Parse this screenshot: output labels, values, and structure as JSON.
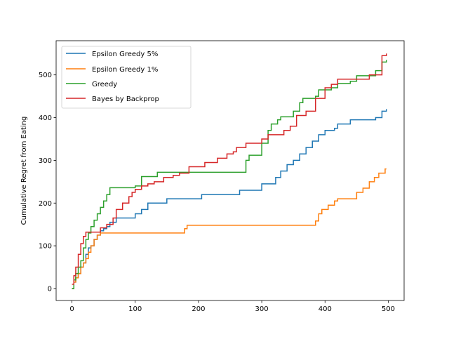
{
  "chart_data": {
    "type": "line",
    "title": "",
    "xlabel": "",
    "ylabel": "Cumulative Regret from Eating",
    "xlim": [
      -25,
      525
    ],
    "ylim": [
      -28,
      580
    ],
    "xticks": [
      0,
      100,
      200,
      300,
      400,
      500
    ],
    "yticks": [
      0,
      100,
      200,
      300,
      400,
      500
    ],
    "grid": false,
    "legend_position": "top-left",
    "series": [
      {
        "name": "Epsilon Greedy 5%",
        "color": "#1f77b4",
        "points": [
          [
            0,
            0
          ],
          [
            3,
            15
          ],
          [
            6,
            25
          ],
          [
            10,
            35
          ],
          [
            14,
            50
          ],
          [
            18,
            60
          ],
          [
            22,
            80
          ],
          [
            26,
            95
          ],
          [
            30,
            100
          ],
          [
            35,
            115
          ],
          [
            40,
            125
          ],
          [
            45,
            135
          ],
          [
            50,
            140
          ],
          [
            55,
            145
          ],
          [
            60,
            155
          ],
          [
            70,
            165
          ],
          [
            100,
            175
          ],
          [
            110,
            185
          ],
          [
            120,
            200
          ],
          [
            150,
            210
          ],
          [
            205,
            220
          ],
          [
            265,
            230
          ],
          [
            300,
            245
          ],
          [
            322,
            260
          ],
          [
            330,
            275
          ],
          [
            340,
            290
          ],
          [
            350,
            300
          ],
          [
            360,
            315
          ],
          [
            370,
            330
          ],
          [
            380,
            345
          ],
          [
            390,
            360
          ],
          [
            400,
            370
          ],
          [
            415,
            375
          ],
          [
            420,
            385
          ],
          [
            440,
            395
          ],
          [
            480,
            400
          ],
          [
            490,
            415
          ],
          [
            497,
            420
          ]
        ]
      },
      {
        "name": "Epsilon Greedy 1%",
        "color": "#ff7f0e",
        "points": [
          [
            0,
            0
          ],
          [
            3,
            15
          ],
          [
            6,
            25
          ],
          [
            10,
            35
          ],
          [
            14,
            50
          ],
          [
            18,
            60
          ],
          [
            22,
            70
          ],
          [
            26,
            85
          ],
          [
            30,
            100
          ],
          [
            35,
            115
          ],
          [
            40,
            125
          ],
          [
            45,
            130
          ],
          [
            175,
            130
          ],
          [
            178,
            140
          ],
          [
            182,
            148
          ],
          [
            370,
            148
          ],
          [
            385,
            158
          ],
          [
            390,
            175
          ],
          [
            395,
            185
          ],
          [
            405,
            195
          ],
          [
            415,
            205
          ],
          [
            420,
            210
          ],
          [
            450,
            225
          ],
          [
            460,
            235
          ],
          [
            470,
            250
          ],
          [
            478,
            260
          ],
          [
            485,
            270
          ],
          [
            495,
            280
          ],
          [
            497,
            280
          ]
        ]
      },
      {
        "name": "Greedy",
        "color": "#2ca02c",
        "points": [
          [
            0,
            0
          ],
          [
            3,
            20
          ],
          [
            6,
            35
          ],
          [
            10,
            50
          ],
          [
            14,
            65
          ],
          [
            18,
            95
          ],
          [
            22,
            115
          ],
          [
            26,
            130
          ],
          [
            30,
            145
          ],
          [
            35,
            160
          ],
          [
            40,
            175
          ],
          [
            45,
            190
          ],
          [
            50,
            205
          ],
          [
            55,
            220
          ],
          [
            60,
            236
          ],
          [
            100,
            240
          ],
          [
            110,
            262
          ],
          [
            135,
            272
          ],
          [
            268,
            272
          ],
          [
            275,
            300
          ],
          [
            280,
            312
          ],
          [
            300,
            340
          ],
          [
            310,
            370
          ],
          [
            315,
            385
          ],
          [
            325,
            395
          ],
          [
            330,
            402
          ],
          [
            350,
            415
          ],
          [
            360,
            435
          ],
          [
            365,
            445
          ],
          [
            385,
            450
          ],
          [
            390,
            465
          ],
          [
            410,
            470
          ],
          [
            420,
            480
          ],
          [
            440,
            485
          ],
          [
            450,
            498
          ],
          [
            480,
            510
          ],
          [
            490,
            530
          ],
          [
            497,
            535
          ]
        ]
      },
      {
        "name": "Bayes by Backprop",
        "color": "#d62728",
        "points": [
          [
            0,
            10
          ],
          [
            3,
            30
          ],
          [
            6,
            50
          ],
          [
            10,
            80
          ],
          [
            14,
            105
          ],
          [
            18,
            122
          ],
          [
            22,
            132
          ],
          [
            40,
            132
          ],
          [
            45,
            142
          ],
          [
            55,
            150
          ],
          [
            65,
            165
          ],
          [
            70,
            185
          ],
          [
            80,
            200
          ],
          [
            90,
            215
          ],
          [
            95,
            225
          ],
          [
            100,
            232
          ],
          [
            110,
            240
          ],
          [
            120,
            245
          ],
          [
            130,
            250
          ],
          [
            145,
            260
          ],
          [
            160,
            265
          ],
          [
            170,
            270
          ],
          [
            185,
            285
          ],
          [
            210,
            295
          ],
          [
            230,
            305
          ],
          [
            245,
            315
          ],
          [
            255,
            320
          ],
          [
            260,
            330
          ],
          [
            275,
            340
          ],
          [
            300,
            350
          ],
          [
            310,
            360
          ],
          [
            335,
            370
          ],
          [
            345,
            380
          ],
          [
            355,
            405
          ],
          [
            370,
            415
          ],
          [
            385,
            445
          ],
          [
            400,
            470
          ],
          [
            410,
            478
          ],
          [
            420,
            490
          ],
          [
            470,
            500
          ],
          [
            490,
            545
          ],
          [
            497,
            550
          ]
        ]
      }
    ]
  }
}
